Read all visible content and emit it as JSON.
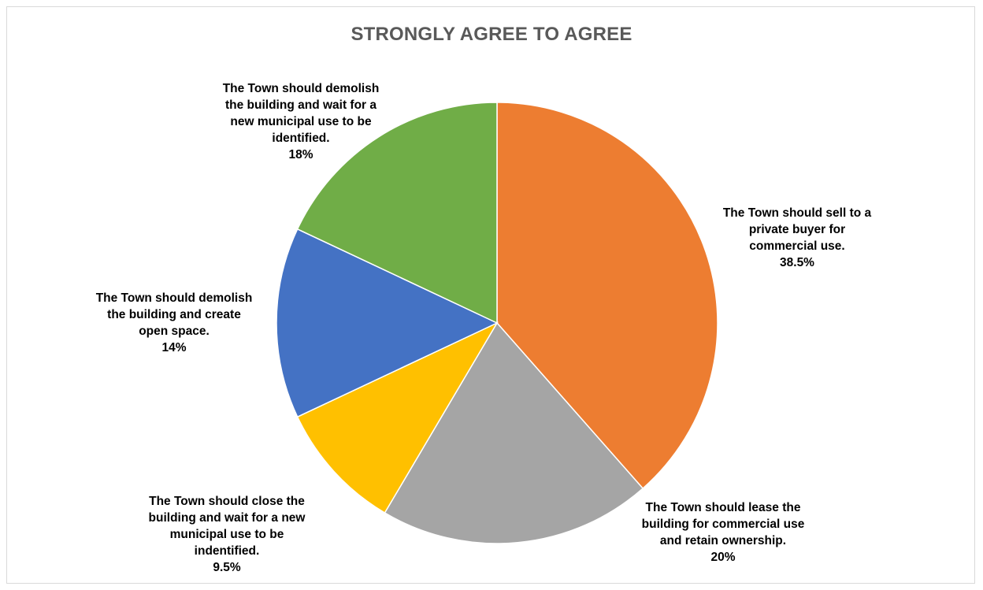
{
  "chart_data": {
    "type": "pie",
    "title": "STRONGLY AGREE TO AGREE",
    "slices": [
      {
        "label": "The Town should sell to a\nprivate buyer for\ncommercial use.",
        "percent_label": "38.5%",
        "value": 38.5,
        "color": "#ED7D31"
      },
      {
        "label": "The Town should lease the\nbuilding for commercial use\nand retain ownership.",
        "percent_label": "20%",
        "value": 20,
        "color": "#A5A5A5"
      },
      {
        "label": "The Town should close the\nbuilding and wait for a new\nmunicipal use to be\nindentified.",
        "percent_label": "9.5%",
        "value": 9.5,
        "color": "#FFC000"
      },
      {
        "label": "The Town should demolish\nthe building and create\nopen space.",
        "percent_label": "14%",
        "value": 14,
        "color": "#4472C4"
      },
      {
        "label": "The Town should demolish\nthe building and wait for a\nnew municipal use to be\nidentified.",
        "percent_label": "18%",
        "value": 18,
        "color": "#70AD47"
      }
    ],
    "start_angle": "12 o'clock",
    "direction": "clockwise",
    "legend": "none"
  }
}
